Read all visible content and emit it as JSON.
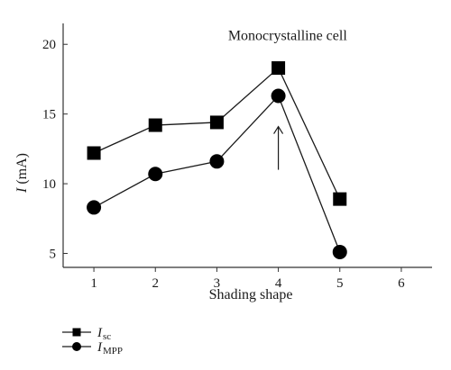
{
  "chart_data": {
    "type": "line",
    "x": [
      1,
      2,
      3,
      4,
      5
    ],
    "series": [
      {
        "name": "I",
        "subscript": "sc",
        "marker": "square",
        "values": [
          12.2,
          14.2,
          14.4,
          18.3,
          8.9
        ]
      },
      {
        "name": "I",
        "subscript": "MPP",
        "marker": "circle",
        "values": [
          8.3,
          10.7,
          11.6,
          16.3,
          5.1
        ]
      }
    ],
    "xlabel": "Shading shape",
    "ylabel": {
      "symbol": "I",
      "unit": " (mA)"
    },
    "xlim": [
      0.5,
      6.5
    ],
    "ylim": [
      4,
      21.5
    ],
    "xticks": [
      1,
      2,
      3,
      4,
      5,
      6
    ],
    "yticks": [
      5,
      10,
      15,
      20
    ],
    "annotations": [
      {
        "text": "Monocrystalline cell",
        "x": 4.15,
        "y": 20.3
      }
    ],
    "arrow": {
      "x": 4,
      "y_start": 11,
      "y_end": 14.1
    },
    "grid": false,
    "legend_placement": "below-left",
    "colors": {
      "line": "#1a1a1a",
      "marker": "#000000",
      "axis": "#333333"
    }
  }
}
